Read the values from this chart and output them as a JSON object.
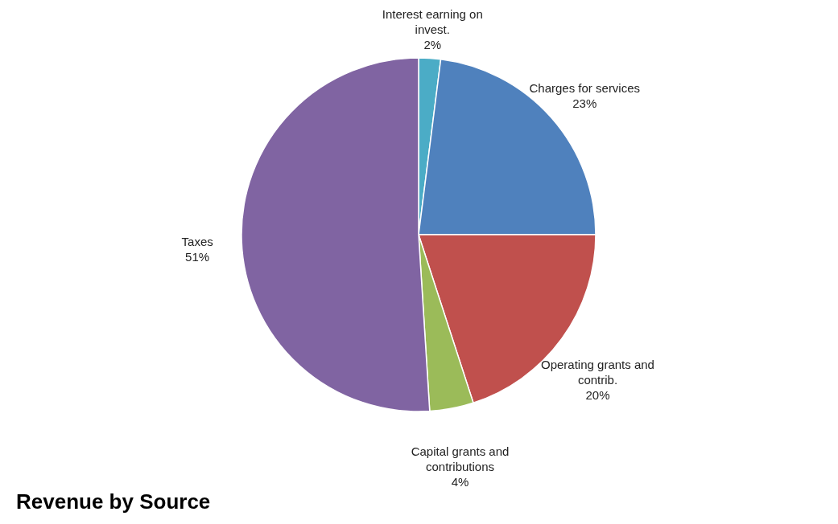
{
  "chart_data": {
    "type": "pie",
    "title": "Revenue by Source",
    "categories": [
      "Interest earning on invest.",
      "Charges for services",
      "Operating grants and contrib.",
      "Capital grants and contributions",
      "Taxes"
    ],
    "values": [
      2,
      23,
      20,
      4,
      51
    ],
    "value_labels": [
      "2%",
      "23%",
      "20%",
      "4%",
      "51%"
    ],
    "colors": [
      "#4bacc6",
      "#4f81bd",
      "#c0504d",
      "#9bbb59",
      "#8064a2"
    ],
    "legend": false
  }
}
